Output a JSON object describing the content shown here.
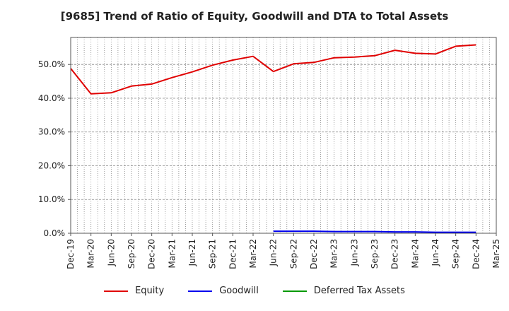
{
  "chart_data": {
    "type": "line",
    "title": "[9685]  Trend of Ratio of Equity, Goodwill and DTA to Total Assets",
    "xlabel": "",
    "ylabel": "",
    "ylim": [
      0,
      0.58
    ],
    "y_ticks": [
      0,
      0.1,
      0.2,
      0.3,
      0.4,
      0.5
    ],
    "y_tick_labels": [
      "0.0%",
      "10.0%",
      "20.0%",
      "30.0%",
      "40.0%",
      "50.0%"
    ],
    "x_tick_labels": [
      "Dec-19",
      "Mar-20",
      "Jun-20",
      "Sep-20",
      "Dec-20",
      "Mar-21",
      "Jun-21",
      "Sep-21",
      "Dec-21",
      "Mar-22",
      "Jun-22",
      "Sep-22",
      "Dec-22",
      "Mar-23",
      "Jun-23",
      "Sep-23",
      "Dec-23",
      "Mar-24",
      "Jun-24",
      "Sep-24",
      "Dec-24",
      "Mar-25"
    ],
    "grid": true,
    "legend_position": "bottom",
    "series": [
      {
        "name": "Equity",
        "color": "#e00000",
        "values": [
          0.488,
          0.413,
          0.416,
          0.436,
          0.442,
          0.461,
          0.478,
          0.498,
          0.513,
          0.524,
          0.479,
          0.502,
          0.506,
          0.52,
          0.522,
          0.526,
          0.542,
          0.533,
          0.531,
          0.554,
          0.558,
          null
        ]
      },
      {
        "name": "Goodwill",
        "color": "#0000ee",
        "values": [
          null,
          null,
          null,
          null,
          null,
          null,
          null,
          null,
          null,
          null,
          0.006,
          0.006,
          0.006,
          0.005,
          0.005,
          0.005,
          0.004,
          0.004,
          0.003,
          0.003,
          0.003,
          null
        ]
      },
      {
        "name": "Deferred Tax Assets",
        "color": "#009900",
        "values": [
          null,
          null,
          null,
          null,
          null,
          null,
          null,
          null,
          null,
          null,
          null,
          null,
          null,
          null,
          null,
          null,
          null,
          null,
          null,
          null,
          null,
          null
        ]
      }
    ]
  }
}
